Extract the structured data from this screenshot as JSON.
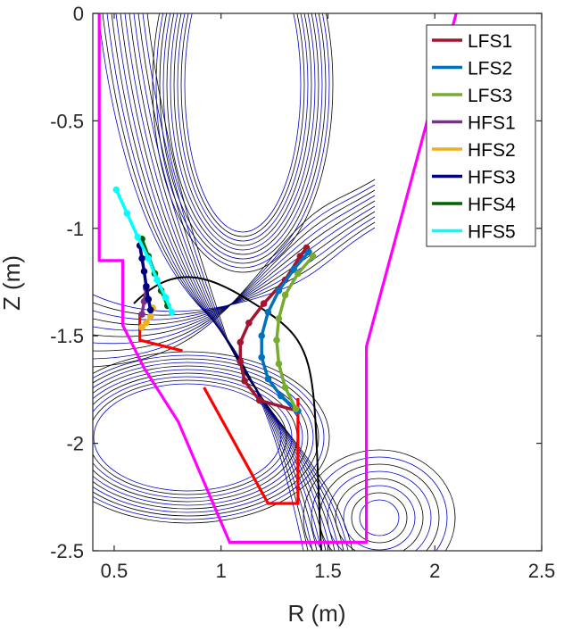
{
  "chart_data": {
    "type": "line",
    "title": "",
    "xlabel": "R (m)",
    "ylabel": "Z (m)",
    "xlim": [
      0.4,
      2.5
    ],
    "ylim": [
      -2.5,
      0
    ],
    "xticks": [
      0.5,
      1,
      1.5,
      2,
      2.5
    ],
    "xtick_labels": [
      "0.5",
      "1",
      "1.5",
      "2",
      "2.5"
    ],
    "yticks": [
      0,
      -0.5,
      -1,
      -1.5,
      -2,
      -2.5
    ],
    "ytick_labels": [
      "0",
      "-0.5",
      "-1",
      "-1.5",
      "-2",
      "-2.5"
    ],
    "grid": false,
    "legend_position": "top-right",
    "series": [
      {
        "name": "LFS1",
        "color": "#A2142F",
        "marker": true,
        "x": [
          1.4,
          1.37,
          1.3,
          1.2,
          1.13,
          1.09,
          1.09,
          1.11,
          1.18,
          1.36
        ],
        "y": [
          -1.09,
          -1.13,
          -1.24,
          -1.35,
          -1.44,
          -1.53,
          -1.62,
          -1.71,
          -1.8,
          -1.85
        ]
      },
      {
        "name": "LFS2",
        "color": "#0072BD",
        "marker": true,
        "x": [
          1.41,
          1.34,
          1.27,
          1.22,
          1.19,
          1.19,
          1.22,
          1.28,
          1.36
        ],
        "y": [
          -1.11,
          -1.19,
          -1.29,
          -1.39,
          -1.5,
          -1.6,
          -1.7,
          -1.78,
          -1.85
        ]
      },
      {
        "name": "LFS3",
        "color": "#77AC30",
        "marker": true,
        "x": [
          1.43,
          1.36,
          1.3,
          1.27,
          1.26,
          1.27,
          1.3,
          1.35
        ],
        "y": [
          -1.13,
          -1.21,
          -1.31,
          -1.42,
          -1.52,
          -1.63,
          -1.74,
          -1.84
        ]
      },
      {
        "name": "HFS1",
        "color": "#7E2F8E",
        "marker": true,
        "x": [
          0.65,
          0.64,
          0.63
        ],
        "y": [
          -1.28,
          -1.34,
          -1.4
        ]
      },
      {
        "name": "HFS2",
        "color": "#EDB120",
        "marker": true,
        "x": [
          0.68,
          0.67,
          0.65,
          0.63
        ],
        "y": [
          -1.37,
          -1.41,
          -1.44,
          -1.46
        ]
      },
      {
        "name": "HFS3",
        "color": "#000080",
        "marker": true,
        "x": [
          0.62,
          0.63,
          0.64,
          0.65,
          0.66,
          0.67
        ],
        "y": [
          -1.08,
          -1.14,
          -1.2,
          -1.27,
          -1.33,
          -1.38
        ]
      },
      {
        "name": "HFS4",
        "color": "#006400",
        "marker": true,
        "x": [
          0.63,
          0.66,
          0.69,
          0.72,
          0.75
        ],
        "y": [
          -1.05,
          -1.13,
          -1.21,
          -1.29,
          -1.36
        ]
      },
      {
        "name": "HFS5",
        "color": "#00FFFF",
        "marker": true,
        "x": [
          0.51,
          0.56,
          0.61,
          0.66,
          0.7,
          0.74,
          0.77
        ],
        "y": [
          -0.82,
          -0.93,
          -1.04,
          -1.14,
          -1.24,
          -1.32,
          -1.39
        ]
      }
    ],
    "overlays": [
      {
        "color": "#FF00FF",
        "x": [
          0.43,
          0.43,
          0.54,
          0.54,
          0.64,
          0.8,
          1.04,
          1.68,
          1.68,
          1.68,
          1.68,
          2.1
        ],
        "y": [
          0,
          -1.15,
          -1.15,
          -1.45,
          -1.65,
          -1.9,
          -2.46,
          -2.46,
          -2.28,
          -1.55,
          -1.55,
          0
        ]
      },
      {
        "color": "#FF0000",
        "x": [
          0.62,
          0.62,
          0.82
        ],
        "y": [
          -1.4,
          -1.52,
          -1.57
        ]
      },
      {
        "color": "#FF0000",
        "x": [
          0.92,
          1.22,
          1.36,
          1.36
        ],
        "y": [
          -1.74,
          -2.28,
          -2.28,
          -1.79
        ]
      }
    ]
  }
}
